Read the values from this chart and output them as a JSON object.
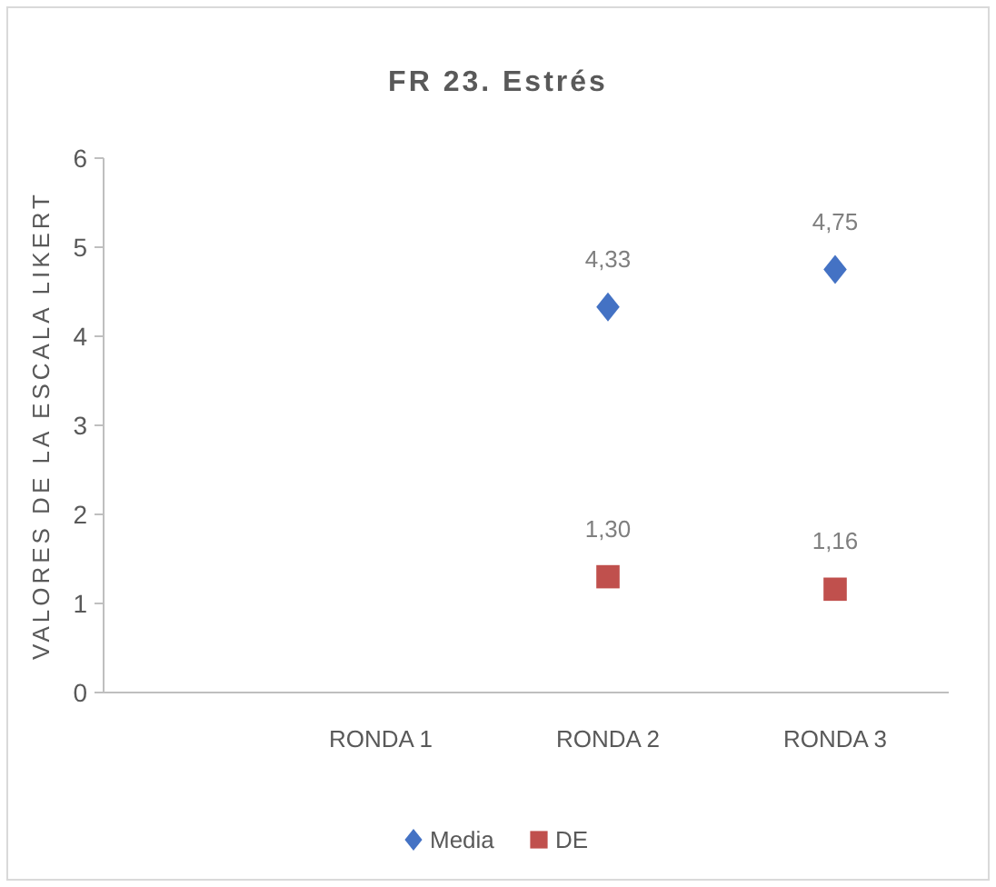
{
  "chart_data": {
    "type": "scatter",
    "title": "FR 23. Estrés",
    "ylabel": "VALORES DE LA ESCALA LIKERT",
    "categories": [
      "RONDA 1",
      "RONDA 2",
      "RONDA 3"
    ],
    "series": [
      {
        "name": "Media",
        "color": "#4472c4",
        "marker": "diamond",
        "values": [
          null,
          4.33,
          4.75
        ],
        "value_labels": [
          null,
          "4,33",
          "4,75"
        ]
      },
      {
        "name": "DE",
        "color": "#c0504d",
        "marker": "square",
        "values": [
          null,
          1.3,
          1.16
        ],
        "value_labels": [
          null,
          "1,30",
          "1,16"
        ]
      }
    ],
    "ylim": [
      0,
      6
    ],
    "yticks": [
      0,
      1,
      2,
      3,
      4,
      5,
      6
    ],
    "grid": false,
    "legend": "bottom"
  }
}
